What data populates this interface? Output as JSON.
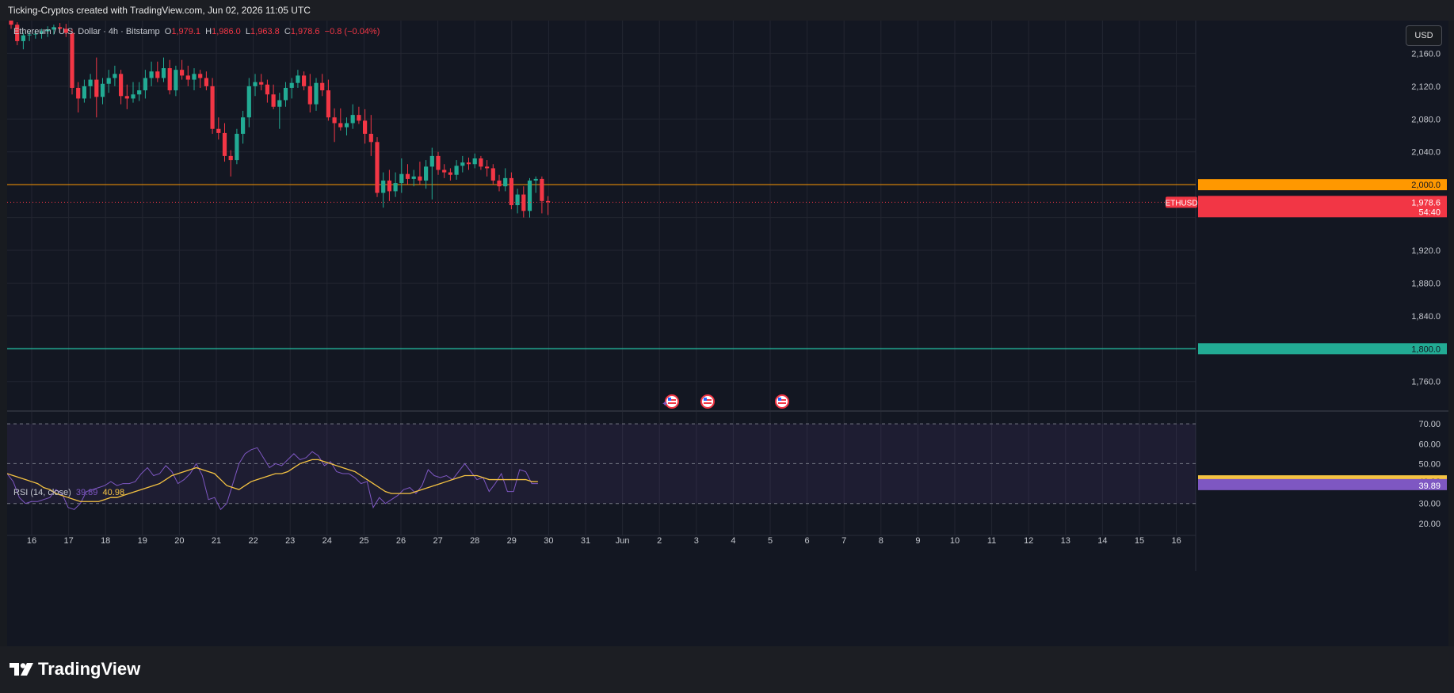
{
  "header": {
    "attribution": "Ticking-Cryptos created with TradingView.com, Jun 02, 2026 11:05 UTC"
  },
  "legend": {
    "symbol": "Ethereum / U.S. Dollar · 4h · Bitstamp",
    "o_label": "O",
    "o_value": "1,979.1",
    "h_label": "H",
    "h_value": "1,986.0",
    "l_label": "L",
    "l_value": "1,963.8",
    "c_label": "C",
    "c_value": "1,978.6",
    "change": "−0.8 (−0.04%)"
  },
  "currency_button": "USD",
  "rsi_legend": {
    "name": "RSI (14, close)",
    "rsi": "39.89",
    "ma": "40.98"
  },
  "footer": {
    "brand": "TradingView"
  },
  "colors": {
    "up": "#22ab94",
    "down": "#f23645",
    "bg": "#131722",
    "grid": "#232631",
    "orange": "#ff9800",
    "green_line": "#22ab94",
    "rsi": "#7e57c2",
    "rsi_ma": "#f5c342",
    "rsi_band": "#7e57c2"
  },
  "chart_data": [
    {
      "type": "candlestick",
      "title": "Ethereum / U.S. Dollar · 4h · Bitstamp",
      "ylim": [
        1725,
        2200
      ],
      "y_ticks": [
        "2,160.0",
        "2,120.0",
        "2,080.0",
        "2,040.0",
        "1,920.0",
        "1,880.0",
        "1,840.0",
        "1,760.0"
      ],
      "y_tick_values": [
        2160,
        2120,
        2080,
        2040,
        1920,
        1880,
        1840,
        1760
      ],
      "x_ticks": [
        "16",
        "17",
        "18",
        "19",
        "20",
        "21",
        "22",
        "23",
        "24",
        "25",
        "26",
        "27",
        "28",
        "29",
        "30",
        "31",
        "Jun",
        "2",
        "3",
        "4",
        "5",
        "6",
        "7",
        "8",
        "9",
        "10",
        "11",
        "12",
        "13",
        "14",
        "15",
        "16"
      ],
      "horizontal_lines": [
        {
          "value": 2000,
          "label": "2,000.0",
          "color": "#ff9800"
        },
        {
          "value": 1800,
          "label": "1,800.0",
          "color": "#22ab94"
        }
      ],
      "price_line": {
        "value": 1978.6,
        "symbol": "ETHUSD",
        "label": "1,978.6",
        "countdown": "54:40"
      },
      "candles": [
        [
          2210,
          2213,
          2190,
          2195
        ],
        [
          2195,
          2198,
          2170,
          2175
        ],
        [
          2175,
          2185,
          2165,
          2182
        ],
        [
          2182,
          2187,
          2175,
          2183
        ],
        [
          2183,
          2188,
          2178,
          2184
        ],
        [
          2184,
          2190,
          2178,
          2187
        ],
        [
          2187,
          2193,
          2180,
          2189
        ],
        [
          2189,
          2195,
          2183,
          2192
        ],
        [
          2192,
          2197,
          2186,
          2190
        ],
        [
          2190,
          2196,
          2180,
          2185
        ],
        [
          2185,
          2190,
          2110,
          2118
        ],
        [
          2118,
          2125,
          2088,
          2105
        ],
        [
          2105,
          2128,
          2100,
          2120
        ],
        [
          2120,
          2135,
          2105,
          2128
        ],
        [
          2128,
          2155,
          2082,
          2107
        ],
        [
          2107,
          2130,
          2098,
          2123
        ],
        [
          2123,
          2140,
          2112,
          2130
        ],
        [
          2130,
          2145,
          2120,
          2135
        ],
        [
          2135,
          2140,
          2098,
          2108
        ],
        [
          2108,
          2122,
          2092,
          2105
        ],
        [
          2105,
          2125,
          2100,
          2110
        ],
        [
          2110,
          2125,
          2102,
          2115
        ],
        [
          2115,
          2140,
          2105,
          2130
        ],
        [
          2130,
          2150,
          2120,
          2138
        ],
        [
          2138,
          2150,
          2125,
          2130
        ],
        [
          2130,
          2155,
          2125,
          2142
        ],
        [
          2142,
          2152,
          2110,
          2115
        ],
        [
          2115,
          2145,
          2108,
          2140
        ],
        [
          2140,
          2152,
          2128,
          2133
        ],
        [
          2133,
          2145,
          2120,
          2128
        ],
        [
          2128,
          2142,
          2115,
          2135
        ],
        [
          2135,
          2140,
          2118,
          2130
        ],
        [
          2130,
          2138,
          2115,
          2120
        ],
        [
          2120,
          2130,
          2062,
          2068
        ],
        [
          2068,
          2082,
          2055,
          2063
        ],
        [
          2063,
          2075,
          2028,
          2035
        ],
        [
          2035,
          2042,
          2010,
          2030
        ],
        [
          2030,
          2068,
          2025,
          2062
        ],
        [
          2062,
          2090,
          2050,
          2082
        ],
        [
          2082,
          2130,
          2070,
          2120
        ],
        [
          2120,
          2135,
          2108,
          2125
        ],
        [
          2125,
          2135,
          2115,
          2122
        ],
        [
          2122,
          2128,
          2100,
          2110
        ],
        [
          2110,
          2122,
          2092,
          2095
        ],
        [
          2095,
          2112,
          2068,
          2103
        ],
        [
          2103,
          2125,
          2095,
          2118
        ],
        [
          2118,
          2130,
          2105,
          2124
        ],
        [
          2124,
          2140,
          2118,
          2133
        ],
        [
          2133,
          2138,
          2115,
          2120
        ],
        [
          2120,
          2135,
          2088,
          2098
        ],
        [
          2098,
          2130,
          2090,
          2124
        ],
        [
          2124,
          2135,
          2108,
          2115
        ],
        [
          2115,
          2128,
          2078,
          2082
        ],
        [
          2082,
          2093,
          2052,
          2075
        ],
        [
          2075,
          2093,
          2066,
          2070
        ],
        [
          2070,
          2082,
          2060,
          2075
        ],
        [
          2075,
          2098,
          2068,
          2085
        ],
        [
          2085,
          2095,
          2074,
          2078
        ],
        [
          2078,
          2092,
          2050,
          2062
        ],
        [
          2062,
          2085,
          2035,
          2052
        ],
        [
          2052,
          2058,
          1985,
          1990
        ],
        [
          1990,
          2015,
          1972,
          2005
        ],
        [
          2005,
          2018,
          1980,
          1992
        ],
        [
          1992,
          2015,
          1985,
          2002
        ],
        [
          2002,
          2032,
          1990,
          2013
        ],
        [
          2013,
          2025,
          2000,
          2007
        ],
        [
          2007,
          2018,
          1998,
          2010
        ],
        [
          2010,
          2028,
          2000,
          2005
        ],
        [
          2005,
          2030,
          1995,
          2022
        ],
        [
          2022,
          2045,
          1982,
          2035
        ],
        [
          2035,
          2040,
          2012,
          2018
        ],
        [
          2018,
          2025,
          2008,
          2015
        ],
        [
          2015,
          2020,
          2005,
          2012
        ],
        [
          2012,
          2030,
          2006,
          2023
        ],
        [
          2023,
          2035,
          2015,
          2027
        ],
        [
          2027,
          2033,
          2018,
          2025
        ],
        [
          2025,
          2038,
          2020,
          2032
        ],
        [
          2032,
          2035,
          2018,
          2022
        ],
        [
          2022,
          2030,
          2010,
          2020
        ],
        [
          2020,
          2025,
          2000,
          2005
        ],
        [
          2005,
          2012,
          1992,
          1998
        ],
        [
          1998,
          2020,
          1992,
          2008
        ],
        [
          2008,
          2015,
          1970,
          1975
        ],
        [
          1975,
          1995,
          1965,
          1988
        ],
        [
          1988,
          1998,
          1960,
          1968
        ],
        [
          1968,
          2008,
          1960,
          2005
        ],
        [
          2005,
          2010,
          1990,
          2007
        ],
        [
          2007,
          2010,
          1965,
          1980
        ],
        [
          1980,
          1986,
          1963,
          1978.6
        ]
      ]
    },
    {
      "type": "line",
      "title": "RSI (14, close)",
      "ylim": [
        14,
        76
      ],
      "y_ticks": [
        "70.00",
        "60.00",
        "50.00",
        "30.00",
        "20.00"
      ],
      "y_tick_values": [
        70,
        60,
        50,
        30,
        20
      ],
      "bands": [
        70,
        50,
        30
      ],
      "series": [
        {
          "name": "RSI",
          "color": "#7e57c2",
          "values": [
            45,
            41,
            33,
            30,
            31,
            31,
            32,
            33,
            37,
            35,
            28,
            27,
            30,
            36,
            37,
            38,
            39,
            41,
            39,
            40,
            40,
            41,
            45,
            48,
            44,
            45,
            49,
            46,
            40,
            42,
            45,
            50,
            44,
            32,
            33,
            27,
            30,
            40,
            50,
            55,
            57,
            58,
            53,
            48,
            50,
            49,
            52,
            55,
            52,
            53,
            56,
            54,
            49,
            51,
            46,
            45,
            45,
            43,
            40,
            41,
            28,
            33,
            30,
            32,
            34,
            37,
            38,
            35,
            39,
            47,
            44,
            43,
            44,
            42,
            46,
            50,
            46,
            42,
            43,
            36,
            40,
            45,
            36,
            36,
            47,
            46,
            40,
            40
          ],
          "last": 39.89
        },
        {
          "name": "MA",
          "color": "#f5c342",
          "values": [
            45,
            44,
            43,
            42,
            41,
            40,
            38,
            37,
            35,
            34,
            33,
            32,
            31,
            31,
            31,
            31,
            32,
            33,
            33,
            34,
            35,
            36,
            37,
            38,
            39,
            40,
            42,
            44,
            45,
            46,
            47,
            48,
            47,
            46,
            45,
            42,
            39,
            38,
            37,
            39,
            41,
            42,
            43,
            44,
            45,
            45,
            46,
            48,
            50,
            51,
            52,
            52,
            51,
            50,
            49,
            48,
            47,
            46,
            44,
            42,
            40,
            38,
            36,
            35,
            35,
            35,
            35,
            36,
            37,
            38,
            39,
            40,
            41,
            42,
            43,
            44,
            44,
            44,
            43,
            42,
            42,
            42,
            42,
            42,
            42,
            42,
            41,
            40.98
          ],
          "last": 40.98
        }
      ]
    }
  ]
}
